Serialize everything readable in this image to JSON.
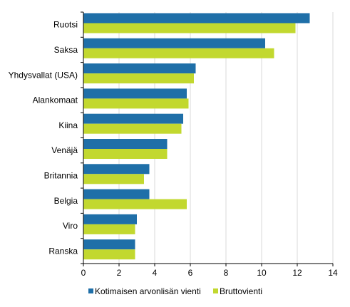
{
  "chart_data": {
    "type": "bar",
    "orientation": "horizontal",
    "categories": [
      "Ruotsi",
      "Saksa",
      "Yhdysvallat (USA)",
      "Alankomaat",
      "Kiina",
      "Venäjä",
      "Britannia",
      "Belgia",
      "Viro",
      "Ranska"
    ],
    "series": [
      {
        "name": "Kotimaisen arvonlisän vienti",
        "color": "#1f6fa8",
        "values": [
          12.7,
          10.2,
          6.3,
          5.8,
          5.6,
          4.7,
          3.7,
          3.7,
          3.0,
          2.9
        ]
      },
      {
        "name": "Bruttovienti",
        "color": "#c2d82f",
        "values": [
          11.9,
          10.7,
          6.2,
          5.9,
          5.5,
          4.7,
          3.4,
          5.8,
          2.9,
          2.9
        ]
      }
    ],
    "xlim": [
      0,
      14
    ],
    "xticks": [
      "0",
      "2",
      "4",
      "6",
      "8",
      "10",
      "12",
      "14"
    ],
    "grid": "vertical",
    "legend": "bottom",
    "title": "",
    "xlabel": "",
    "ylabel": ""
  }
}
